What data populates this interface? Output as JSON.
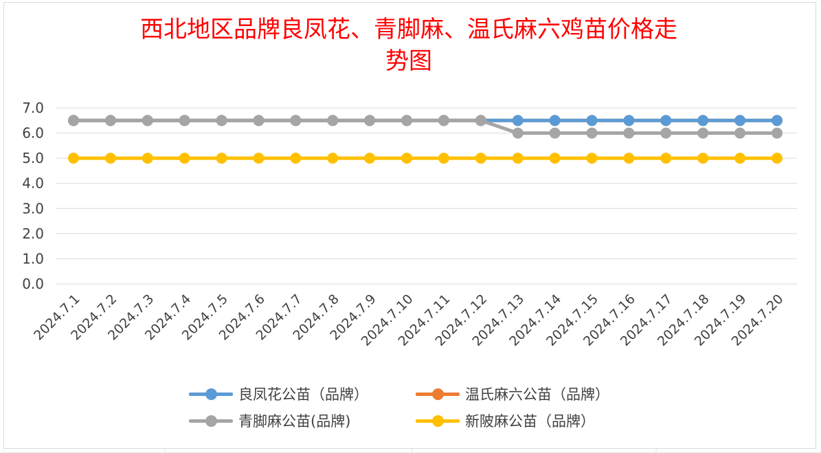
{
  "chart_data": {
    "type": "line",
    "title": "西北地区品牌良凤花、青脚麻、温氏麻六鸡苗价格走势图",
    "title_lines": [
      "西北地区品牌良凤花、青脚麻、温氏麻六鸡苗价格走",
      "势图"
    ],
    "xlabel": "",
    "ylabel": "",
    "ylim": [
      0,
      7
    ],
    "yticks": [
      "0.0",
      "1.0",
      "2.0",
      "3.0",
      "4.0",
      "5.0",
      "6.0",
      "7.0"
    ],
    "grid": true,
    "legend_position": "bottom",
    "categories": [
      "2024.7.1",
      "2024.7.2",
      "2024.7.3",
      "2024.7.4",
      "2024.7.5",
      "2024.7.6",
      "2024.7.7",
      "2024.7.8",
      "2024.7.9",
      "2024.7.10",
      "2024.7.11",
      "2024.7.12",
      "2024.7.13",
      "2024.7.14",
      "2024.7.15",
      "2024.7.16",
      "2024.7.17",
      "2024.7.18",
      "2024.7.19",
      "2024.7.20"
    ],
    "series": [
      {
        "name": "良凤花公苗（品牌）",
        "color": "#5b9bd5",
        "values": [
          6.5,
          6.5,
          6.5,
          6.5,
          6.5,
          6.5,
          6.5,
          6.5,
          6.5,
          6.5,
          6.5,
          6.5,
          6.5,
          6.5,
          6.5,
          6.5,
          6.5,
          6.5,
          6.5,
          6.5
        ]
      },
      {
        "name": "温氏麻六公苗（品牌）",
        "color": "#ed7d31",
        "values": [
          6.5,
          6.5,
          6.5,
          6.5,
          6.5,
          6.5,
          6.5,
          6.5,
          6.5,
          6.5,
          6.5,
          6.5,
          6.5,
          6.5,
          6.5,
          6.5,
          6.5,
          6.5,
          6.5,
          6.5
        ]
      },
      {
        "name": "青脚麻公苗(品牌)",
        "color": "#a5a5a5",
        "values": [
          6.5,
          6.5,
          6.5,
          6.5,
          6.5,
          6.5,
          6.5,
          6.5,
          6.5,
          6.5,
          6.5,
          6.5,
          6.0,
          6.0,
          6.0,
          6.0,
          6.0,
          6.0,
          6.0,
          6.0
        ]
      },
      {
        "name": "新陂麻公苗（品牌）",
        "color": "#ffc000",
        "values": [
          5.0,
          5.0,
          5.0,
          5.0,
          5.0,
          5.0,
          5.0,
          5.0,
          5.0,
          5.0,
          5.0,
          5.0,
          5.0,
          5.0,
          5.0,
          5.0,
          5.0,
          5.0,
          5.0,
          5.0
        ]
      }
    ]
  }
}
